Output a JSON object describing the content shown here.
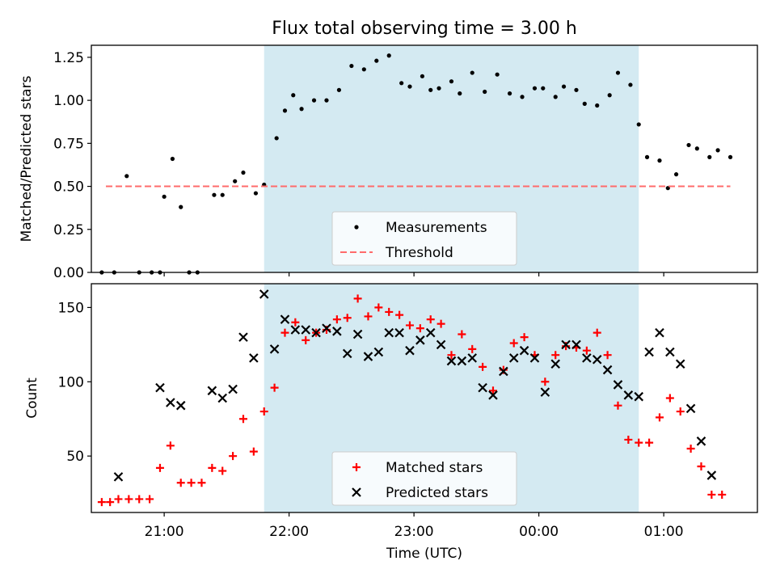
{
  "title": "Flux total observing time = 3.00 h",
  "colors": {
    "band": "#add8e6",
    "measurement": "#000000",
    "threshold": "#ff6b6b",
    "matched": "#ff0000",
    "predicted": "#000000"
  },
  "chart_data": [
    {
      "type": "scatter",
      "panel": "top",
      "title": "Flux total observing time = 3.00 h",
      "xlabel": "",
      "ylabel": "Matched/Predicted stars",
      "xlim": [
        "20:25",
        "01:45"
      ],
      "ylim": [
        0,
        1.32
      ],
      "yticks": [
        "0.00",
        "0.25",
        "0.50",
        "0.75",
        "1.00",
        "1.25"
      ],
      "shaded_interval": [
        "21:48",
        "00:48"
      ],
      "legend_position": "lower center",
      "series": [
        {
          "name": "Measurements",
          "kind": "dots",
          "x": [
            "20:30",
            "20:36",
            "20:42",
            "20:48",
            "20:54",
            "20:58",
            "21:00",
            "21:04",
            "21:08",
            "21:12",
            "21:16",
            "21:24",
            "21:28",
            "21:34",
            "21:38",
            "21:44",
            "21:48",
            "21:54",
            "21:58",
            "22:02",
            "22:06",
            "22:12",
            "22:18",
            "22:24",
            "22:30",
            "22:36",
            "22:42",
            "22:48",
            "22:54",
            "22:58",
            "23:04",
            "23:08",
            "23:12",
            "23:18",
            "23:22",
            "23:28",
            "23:34",
            "23:40",
            "23:46",
            "23:52",
            "23:58",
            "00:02",
            "00:08",
            "00:12",
            "00:18",
            "00:22",
            "00:28",
            "00:34",
            "00:38",
            "00:44",
            "00:48",
            "00:52",
            "00:58",
            "01:02",
            "01:06",
            "01:12",
            "01:16",
            "01:22",
            "01:26",
            "01:32"
          ],
          "y": [
            0.0,
            0.0,
            0.56,
            0.0,
            0.0,
            0.0,
            0.44,
            0.66,
            0.38,
            0.0,
            0.0,
            0.45,
            0.45,
            0.53,
            0.58,
            0.46,
            0.51,
            0.78,
            0.94,
            1.03,
            0.95,
            1.0,
            1.0,
            1.06,
            1.2,
            1.18,
            1.23,
            1.26,
            1.1,
            1.08,
            1.14,
            1.06,
            1.07,
            1.11,
            1.04,
            1.16,
            1.05,
            1.15,
            1.04,
            1.02,
            1.07,
            1.07,
            1.02,
            1.08,
            1.06,
            0.98,
            0.97,
            1.03,
            1.16,
            1.09,
            0.86,
            0.67,
            0.65,
            0.49,
            0.57,
            0.74,
            0.72,
            0.67,
            0.71,
            0.67
          ]
        },
        {
          "name": "Threshold",
          "kind": "dashed-line",
          "x": [
            "20:32",
            "01:32"
          ],
          "y": [
            0.5,
            0.5
          ]
        }
      ]
    },
    {
      "type": "scatter",
      "panel": "bottom",
      "xlabel": "Time (UTC)",
      "ylabel": "Count",
      "xlim": [
        "20:25",
        "01:45"
      ],
      "ylim": [
        12,
        166
      ],
      "yticks": [
        "50",
        "100",
        "150"
      ],
      "xticks": [
        "21:00",
        "22:00",
        "23:00",
        "00:00",
        "01:00"
      ],
      "shaded_interval": [
        "21:48",
        "00:48"
      ],
      "legend_position": "lower center",
      "series": [
        {
          "name": "Matched stars",
          "kind": "plus",
          "x": [
            "20:30",
            "20:34",
            "20:38",
            "20:43",
            "20:48",
            "20:53",
            "20:58",
            "21:03",
            "21:08",
            "21:13",
            "21:18",
            "21:23",
            "21:28",
            "21:33",
            "21:38",
            "21:43",
            "21:48",
            "21:53",
            "21:58",
            "22:03",
            "22:08",
            "22:13",
            "22:18",
            "22:23",
            "22:28",
            "22:33",
            "22:38",
            "22:43",
            "22:48",
            "22:53",
            "22:58",
            "23:03",
            "23:08",
            "23:13",
            "23:18",
            "23:23",
            "23:28",
            "23:33",
            "23:38",
            "23:43",
            "23:48",
            "23:53",
            "23:58",
            "00:03",
            "00:08",
            "00:13",
            "00:18",
            "00:23",
            "00:28",
            "00:33",
            "00:38",
            "00:43",
            "00:48",
            "00:53",
            "00:58",
            "01:03",
            "01:08",
            "01:13",
            "01:18",
            "01:23",
            "01:28"
          ],
          "y": [
            19,
            19,
            21,
            21,
            21,
            21,
            42,
            57,
            32,
            32,
            32,
            42,
            40,
            50,
            75,
            53,
            80,
            96,
            133,
            140,
            128,
            133,
            135,
            142,
            143,
            156,
            144,
            150,
            147,
            145,
            138,
            136,
            142,
            139,
            118,
            132,
            122,
            110,
            94,
            108,
            126,
            130,
            118,
            100,
            118,
            124,
            123,
            121,
            133,
            118,
            84,
            61,
            59,
            59,
            76,
            89,
            80,
            55,
            43,
            24,
            24
          ]
        },
        {
          "name": "Predicted stars",
          "kind": "x",
          "x": [
            "20:38",
            "20:58",
            "21:03",
            "21:08",
            "21:23",
            "21:28",
            "21:33",
            "21:38",
            "21:43",
            "21:48",
            "21:53",
            "21:58",
            "22:03",
            "22:08",
            "22:13",
            "22:18",
            "22:23",
            "22:28",
            "22:33",
            "22:38",
            "22:43",
            "22:48",
            "22:53",
            "22:58",
            "23:03",
            "23:08",
            "23:13",
            "23:18",
            "23:23",
            "23:28",
            "23:33",
            "23:38",
            "23:43",
            "23:48",
            "23:53",
            "23:58",
            "00:03",
            "00:08",
            "00:13",
            "00:18",
            "00:23",
            "00:28",
            "00:33",
            "00:38",
            "00:43",
            "00:48",
            "00:53",
            "00:58",
            "01:03",
            "01:08",
            "01:13",
            "01:18",
            "01:23"
          ],
          "y": [
            36,
            96,
            86,
            84,
            94,
            89,
            95,
            130,
            116,
            159,
            122,
            142,
            135,
            135,
            133,
            136,
            134,
            119,
            132,
            117,
            120,
            133,
            133,
            121,
            128,
            133,
            125,
            114,
            114,
            116,
            96,
            91,
            107,
            116,
            121,
            116,
            93,
            112,
            125,
            125,
            116,
            115,
            108,
            98,
            91,
            90,
            120,
            133,
            120,
            112,
            82,
            60,
            37
          ]
        }
      ]
    }
  ]
}
